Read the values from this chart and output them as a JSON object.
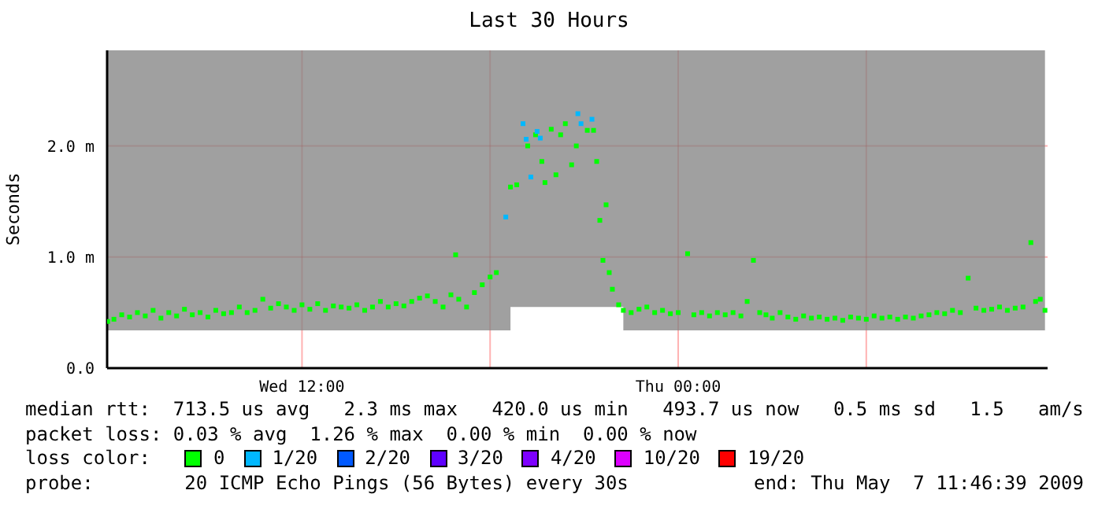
{
  "chart_data": {
    "type": "scatter",
    "title": "Last 30 Hours",
    "ylabel": "Seconds",
    "legend_title": "loss color:",
    "legend": "bottom",
    "grid": true,
    "marker": "square",
    "xlim": [
      "2009-05-06T05:47",
      "2009-05-07T11:47"
    ],
    "xticks": [
      {
        "value": "2009-05-06T12:00",
        "label": "Wed 12:00"
      },
      {
        "value": "2009-05-06T18:00",
        "label": null
      },
      {
        "value": "2009-05-07T00:00",
        "label": "Thu 00:00"
      },
      {
        "value": "2009-05-07T06:00",
        "label": null
      }
    ],
    "ylim": [
      0,
      2.86
    ],
    "yticks": [
      {
        "value": 0,
        "label": "0.0"
      },
      {
        "value": 1,
        "label": "1.0 m"
      },
      {
        "value": 2,
        "label": "2.0 m"
      }
    ],
    "series": [
      {
        "name": "0",
        "lower": [
          0.34,
          0.34,
          0.34,
          0.34,
          0.34,
          0.34,
          0.34,
          0.34,
          0.34,
          0.34,
          0.34,
          0.34,
          0.34,
          0.34,
          0.34,
          0.34,
          0.34,
          0.34,
          0.34,
          0.34,
          0.34,
          0.34,
          0.34,
          0.34,
          0.34,
          0.34,
          0.34,
          0.34,
          0.34,
          0.34,
          0.34,
          0.34,
          0.34,
          0.34,
          0.34,
          0.34,
          0.34,
          0.34,
          0.34,
          0.34,
          0.34,
          0.34,
          0.34,
          0.34,
          0.34,
          0.34,
          0.34,
          0.34,
          0.34,
          0.34,
          0.34,
          0.34,
          0.55,
          0.55,
          0.55,
          0.55,
          0.55,
          0.55,
          0.55,
          0.55,
          0.55,
          0.55,
          0.55,
          0.55,
          0.55,
          0.55,
          0.55,
          0.55,
          0.55,
          0.55,
          0.55,
          0.55,
          0.55,
          0.34,
          0.34,
          0.34,
          0.34,
          0.34,
          0.34,
          0.34,
          0.34,
          0.34,
          0.34,
          0.34,
          0.34,
          0.34,
          0.34,
          0.34,
          0.34,
          0.34,
          0.34,
          0.34,
          0.34,
          0.34,
          0.34,
          0.34,
          0.34,
          0.34,
          0.34,
          0.34,
          0.34,
          0.34,
          0.34,
          0.34,
          0.34,
          0.34,
          0.34,
          0.34,
          0.34,
          0.34,
          0.34,
          0.34,
          0.34,
          0.34,
          0.34,
          0.34,
          0.34,
          0.34,
          0.34,
          0.34,
          0.34,
          0.34,
          0.34,
          0.34,
          0.34,
          0.34,
          0.34,
          0.34,
          0.34,
          0.34
        ],
        "upper": [
          2.86,
          2.86,
          2.86,
          2.86,
          2.86,
          2.86,
          2.86,
          2.86,
          2.86,
          2.86,
          2.86,
          2.86,
          2.86,
          2.86,
          2.86,
          2.86,
          2.86,
          2.86,
          2.86,
          2.86,
          2.86,
          2.86,
          2.86,
          2.86,
          2.86,
          2.86,
          2.86,
          2.86,
          2.86,
          2.86,
          2.86,
          2.86,
          2.86,
          2.86,
          2.86,
          2.86,
          2.86,
          2.86,
          2.86,
          2.86,
          2.86,
          2.86,
          2.86,
          2.86,
          2.86,
          2.86,
          2.86,
          2.86,
          2.86,
          2.86,
          2.86,
          2.86,
          2.86,
          2.86,
          2.86,
          2.86,
          2.86,
          2.86,
          2.86,
          2.86,
          2.86,
          2.86,
          2.86,
          2.86,
          2.86,
          2.86,
          2.86,
          2.86,
          2.86,
          2.86,
          2.86,
          2.86,
          2.86,
          2.86,
          2.86,
          2.86,
          2.86,
          2.86,
          2.86,
          2.86,
          2.86,
          2.86,
          2.86,
          2.86,
          2.86,
          2.86,
          2.86,
          2.86,
          2.86,
          2.86,
          2.86,
          2.86,
          2.86,
          2.86,
          2.86,
          2.86,
          2.86,
          2.86,
          2.86,
          2.86,
          2.86,
          2.86,
          2.86,
          2.86,
          2.86,
          2.86,
          2.86,
          2.86,
          2.86,
          2.86,
          2.86,
          2.86,
          2.86,
          2.86,
          2.86,
          2.86,
          2.86,
          2.86,
          2.86,
          2.86,
          2.86,
          2.86,
          2.86,
          2.86,
          2.86,
          2.86,
          2.86,
          2.86,
          2.86,
          2.86
        ],
        "color": "#00ff00",
        "x": [
          "2009-05-06T05:48",
          "2009-05-06T06:00",
          "2009-05-06T06:15",
          "2009-05-06T06:30",
          "2009-05-06T06:45",
          "2009-05-06T07:00",
          "2009-05-06T07:15",
          "2009-05-06T07:30",
          "2009-05-06T07:45",
          "2009-05-06T08:00",
          "2009-05-06T08:15",
          "2009-05-06T08:30",
          "2009-05-06T08:45",
          "2009-05-06T09:00",
          "2009-05-06T09:15",
          "2009-05-06T09:30",
          "2009-05-06T09:45",
          "2009-05-06T10:00",
          "2009-05-06T10:15",
          "2009-05-06T10:30",
          "2009-05-06T10:45",
          "2009-05-06T11:00",
          "2009-05-06T11:15",
          "2009-05-06T11:30",
          "2009-05-06T11:45",
          "2009-05-06T12:00",
          "2009-05-06T12:15",
          "2009-05-06T12:30",
          "2009-05-06T12:45",
          "2009-05-06T13:00",
          "2009-05-06T13:15",
          "2009-05-06T13:30",
          "2009-05-06T13:45",
          "2009-05-06T14:00",
          "2009-05-06T14:15",
          "2009-05-06T14:30",
          "2009-05-06T14:45",
          "2009-05-06T15:00",
          "2009-05-06T15:15",
          "2009-05-06T15:30",
          "2009-05-06T15:45",
          "2009-05-06T16:00",
          "2009-05-06T16:15",
          "2009-05-06T16:30",
          "2009-05-06T16:45",
          "2009-05-06T16:54",
          "2009-05-06T17:00",
          "2009-05-06T17:15",
          "2009-05-06T17:30",
          "2009-05-06T17:45",
          "2009-05-06T18:00",
          "2009-05-06T18:12",
          "2009-05-06T18:39",
          "2009-05-06T18:51",
          "2009-05-06T19:12",
          "2009-05-06T19:27",
          "2009-05-06T19:39",
          "2009-05-06T19:45",
          "2009-05-06T19:57",
          "2009-05-06T20:06",
          "2009-05-06T20:15",
          "2009-05-06T20:24",
          "2009-05-06T20:36",
          "2009-05-06T20:45",
          "2009-05-06T21:06",
          "2009-05-06T21:18",
          "2009-05-06T21:24",
          "2009-05-06T21:30",
          "2009-05-06T21:36",
          "2009-05-06T21:42",
          "2009-05-06T21:48",
          "2009-05-06T21:54",
          "2009-05-06T22:06",
          "2009-05-06T22:15",
          "2009-05-06T22:30",
          "2009-05-06T22:45",
          "2009-05-06T23:00",
          "2009-05-06T23:15",
          "2009-05-06T23:30",
          "2009-05-06T23:45",
          "2009-05-07T00:00",
          "2009-05-07T00:18",
          "2009-05-07T00:30",
          "2009-05-07T00:45",
          "2009-05-07T01:00",
          "2009-05-07T01:15",
          "2009-05-07T01:30",
          "2009-05-07T01:45",
          "2009-05-07T02:00",
          "2009-05-07T02:12",
          "2009-05-07T02:24",
          "2009-05-07T02:36",
          "2009-05-07T02:48",
          "2009-05-07T03:00",
          "2009-05-07T03:15",
          "2009-05-07T03:30",
          "2009-05-07T03:45",
          "2009-05-07T04:00",
          "2009-05-07T04:15",
          "2009-05-07T04:30",
          "2009-05-07T04:45",
          "2009-05-07T05:00",
          "2009-05-07T05:15",
          "2009-05-07T05:30",
          "2009-05-07T05:45",
          "2009-05-07T06:00",
          "2009-05-07T06:15",
          "2009-05-07T06:30",
          "2009-05-07T06:45",
          "2009-05-07T07:00",
          "2009-05-07T07:15",
          "2009-05-07T07:30",
          "2009-05-07T07:45",
          "2009-05-07T08:00",
          "2009-05-07T08:15",
          "2009-05-07T08:30",
          "2009-05-07T08:45",
          "2009-05-07T09:00",
          "2009-05-07T09:15",
          "2009-05-07T09:30",
          "2009-05-07T09:45",
          "2009-05-07T10:00",
          "2009-05-07T10:15",
          "2009-05-07T10:30",
          "2009-05-07T10:45",
          "2009-05-07T11:00",
          "2009-05-07T11:15",
          "2009-05-07T11:24",
          "2009-05-07T11:33",
          "2009-05-07T11:42"
        ],
        "values": [
          0.42,
          0.44,
          0.48,
          0.46,
          0.5,
          0.47,
          0.52,
          0.45,
          0.5,
          0.47,
          0.53,
          0.48,
          0.5,
          0.46,
          0.52,
          0.49,
          0.5,
          0.55,
          0.5,
          0.52,
          0.62,
          0.54,
          0.58,
          0.55,
          0.52,
          0.57,
          0.53,
          0.58,
          0.52,
          0.56,
          0.55,
          0.54,
          0.57,
          0.52,
          0.55,
          0.6,
          0.55,
          0.58,
          0.56,
          0.6,
          0.63,
          0.65,
          0.6,
          0.55,
          0.66,
          1.02,
          0.62,
          0.55,
          0.68,
          0.75,
          0.82,
          0.86,
          1.63,
          1.65,
          2.0,
          2.1,
          1.86,
          1.67,
          2.15,
          1.74,
          2.1,
          2.2,
          1.83,
          2.0,
          2.14,
          2.14,
          1.86,
          1.33,
          0.97,
          1.47,
          0.86,
          0.71,
          0.57,
          0.52,
          0.5,
          0.53,
          0.55,
          0.5,
          0.52,
          0.49,
          0.5,
          1.03,
          0.48,
          0.5,
          0.47,
          0.5,
          0.48,
          0.5,
          0.47,
          0.6,
          0.97,
          0.5,
          0.48,
          0.45,
          0.5,
          0.46,
          0.44,
          0.47,
          0.45,
          0.46,
          0.44,
          0.45,
          0.43,
          0.46,
          0.45,
          0.44,
          0.47,
          0.45,
          0.46,
          0.44,
          0.46,
          0.45,
          0.47,
          0.48,
          0.5,
          0.49,
          0.52,
          0.5,
          0.81,
          0.54,
          0.52,
          0.53,
          0.55,
          0.52,
          0.54,
          0.55,
          1.13,
          0.6,
          0.62,
          0.52
        ]
      },
      {
        "name": "1/20",
        "color": "#00b8ff",
        "x": [
          "2009-05-06T18:30",
          "2009-05-06T19:03",
          "2009-05-06T19:09",
          "2009-05-06T19:18",
          "2009-05-06T19:30",
          "2009-05-06T19:36",
          "2009-05-06T20:48",
          "2009-05-06T20:54",
          "2009-05-06T21:15"
        ],
        "values": [
          1.36,
          2.2,
          2.06,
          1.72,
          2.13,
          2.07,
          2.29,
          2.2,
          2.24
        ]
      },
      {
        "name": "2/20",
        "color": "#0059ff",
        "values": [
          null
        ]
      },
      {
        "name": "3/20",
        "color": "#5e00ff",
        "values": [
          null
        ]
      },
      {
        "name": "4/20",
        "color": "#7e00ff",
        "values": [
          null
        ]
      },
      {
        "name": "10/20",
        "color": "#dd00ff",
        "values": [
          null
        ]
      },
      {
        "name": "19/20",
        "color": "#ff0000",
        "values": [
          null
        ]
      }
    ],
    "annotations": [
      "median rtt:  713.5 us avg   2.3 ms max   420.0 us min   493.7 us now   0.5 ms sd   1.5   am/s",
      "packet loss: 0.03 % avg  1.26 % max  0.00 % min  0.00 % now",
      "probe:        20 ICMP Echo Pings (56 Bytes) every 30s",
      "end: Thu May  7 11:46:39 2009"
    ]
  }
}
